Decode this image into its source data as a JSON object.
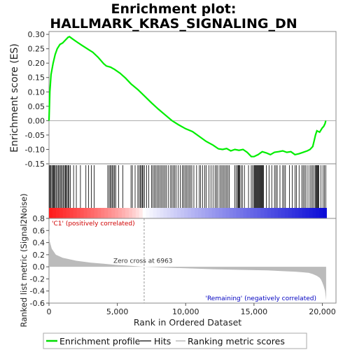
{
  "chart_data": {
    "type": "line",
    "title_line1": "Enrichment plot:",
    "title_line2": "HALLMARK_KRAS_SIGNALING_DN",
    "top_panel": {
      "ylabel": "Enrichment score (ES)",
      "ylim": [
        -0.15,
        0.31
      ],
      "yticks": [
        "0.30",
        "0.25",
        "0.20",
        "0.15",
        "0.10",
        "0.05",
        "0.00",
        "-0.05",
        "-0.10",
        "-0.15"
      ],
      "es_curve": {
        "x": [
          0,
          60,
          150,
          300,
          450,
          600,
          800,
          1000,
          1200,
          1400,
          1500,
          1700,
          2000,
          2400,
          2800,
          3200,
          3600,
          4000,
          4200,
          4500,
          4800,
          5200,
          5600,
          6000,
          6500,
          7000,
          7500,
          8000,
          8500,
          9000,
          9500,
          10000,
          10500,
          11000,
          11500,
          12000,
          12400,
          12700,
          13000,
          13300,
          13600,
          13900,
          14200,
          14500,
          14800,
          15000,
          15300,
          15600,
          15900,
          16200,
          16500,
          16800,
          17100,
          17400,
          17700,
          18000,
          18300,
          18600,
          18900,
          19100,
          19300,
          19400,
          19500,
          19600,
          19800,
          20000,
          20100,
          20200,
          20250
        ],
        "y": [
          0.0,
          0.1,
          0.16,
          0.2,
          0.23,
          0.25,
          0.265,
          0.27,
          0.28,
          0.29,
          0.292,
          0.285,
          0.275,
          0.262,
          0.25,
          0.238,
          0.22,
          0.198,
          0.19,
          0.186,
          0.178,
          0.165,
          0.148,
          0.128,
          0.108,
          0.085,
          0.062,
          0.04,
          0.02,
          0.0,
          -0.015,
          -0.028,
          -0.038,
          -0.055,
          -0.072,
          -0.085,
          -0.098,
          -0.1,
          -0.097,
          -0.105,
          -0.1,
          -0.103,
          -0.1,
          -0.11,
          -0.125,
          -0.125,
          -0.118,
          -0.108,
          -0.112,
          -0.118,
          -0.11,
          -0.108,
          -0.105,
          -0.11,
          -0.108,
          -0.118,
          -0.115,
          -0.11,
          -0.105,
          -0.1,
          -0.09,
          -0.07,
          -0.05,
          -0.035,
          -0.04,
          -0.025,
          -0.02,
          -0.01,
          0.0
        ]
      }
    },
    "hits_panel": {
      "hits": [
        15,
        80,
        140,
        210,
        270,
        330,
        390,
        450,
        520,
        600,
        680,
        750,
        830,
        900,
        980,
        1060,
        1130,
        1200,
        1260,
        1330,
        1400,
        1470,
        1560,
        1800,
        2000,
        2300,
        2700,
        2900,
        3100,
        3300,
        4300,
        4400,
        4480,
        4560,
        4640,
        4720,
        4800,
        4880,
        5100,
        5400,
        6000,
        6100,
        6300,
        6500,
        6600,
        6680,
        6760,
        6830,
        6900,
        7000,
        7150,
        7300,
        7500,
        7600,
        7700,
        7800,
        7900,
        8000,
        8100,
        8200,
        8300,
        8400,
        8500,
        8600,
        8750,
        8900,
        9000,
        9100,
        9200,
        9300,
        9450,
        9600,
        9750,
        9850,
        9950,
        10050,
        10150,
        10250,
        10350,
        10450,
        10600,
        10800,
        11000,
        11100,
        11250,
        11400,
        11500,
        11700,
        11850,
        12000,
        12150,
        12250,
        12350,
        12500,
        12600,
        12700,
        12800,
        12900,
        13000,
        13100,
        13200,
        13600,
        13700,
        13800,
        13850,
        13900,
        13960,
        14050,
        14150,
        14300,
        14600,
        14800,
        14900,
        15000,
        15050,
        15100,
        15150,
        15200,
        15250,
        15300,
        15350,
        15400,
        15450,
        15500,
        15550,
        15600,
        15650,
        15700,
        15900,
        16100,
        16300,
        16500,
        16600,
        16700,
        16900,
        17100,
        17200,
        17300,
        17600,
        17800,
        18000,
        18100,
        18300,
        18500,
        18600,
        18700,
        18800,
        18950,
        19100,
        19200,
        19300,
        19400,
        19500,
        19550,
        19600,
        19650,
        19700,
        19750,
        19900,
        20050,
        20150,
        20250
      ]
    },
    "bottom_panel": {
      "ylabel": "Ranked list metric (Signal2Noise)",
      "xlabel": "Rank in Ordered Dataset",
      "ylim": [
        -0.6,
        0.8
      ],
      "yticks": [
        "0.8",
        "0.6",
        "0.4",
        "0.2",
        "0.0",
        "-0.2",
        "-0.4",
        "-0.6"
      ],
      "xlim": [
        0,
        21000
      ],
      "xticks": [
        "0",
        "5,000",
        "10,000",
        "15,000",
        "20,000"
      ],
      "metric_curve": {
        "x": [
          0,
          50,
          200,
          500,
          1000,
          2000,
          3000,
          4000,
          5000,
          6000,
          6963,
          8000,
          10000,
          12000,
          14000,
          16000,
          17000,
          18000,
          18500,
          19000,
          19300,
          19600,
          19800,
          19900,
          20000,
          20100,
          20200,
          20280
        ],
        "y": [
          0.55,
          0.42,
          0.3,
          0.2,
          0.15,
          0.1,
          0.07,
          0.05,
          0.03,
          0.015,
          0.0,
          -0.01,
          -0.025,
          -0.04,
          -0.05,
          -0.06,
          -0.07,
          -0.08,
          -0.09,
          -0.1,
          -0.12,
          -0.15,
          -0.18,
          -0.21,
          -0.26,
          -0.32,
          -0.4,
          -0.55
        ]
      },
      "zero_cross_label": "Zero cross at 6963",
      "zero_cross_rank": 6963,
      "pos_label": "'C1' (positively correlated)",
      "neg_label": "'Remaining' (negatively correlated)",
      "n_genes": 20300
    },
    "legend": {
      "items": [
        {
          "label": "Enrichment profile",
          "color": "#00dd00"
        },
        {
          "label": "Hits",
          "color": "#000000"
        },
        {
          "label": "Ranking metric scores",
          "color": "#bbbbbb"
        }
      ]
    },
    "colors": {
      "es_line": "#00ee00",
      "pos_text": "#d00000",
      "neg_text": "#0000c0",
      "metric_fill": "#bbbbbb"
    }
  }
}
